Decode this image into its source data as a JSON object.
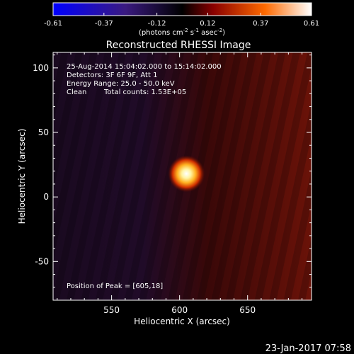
{
  "colorbar": {
    "ticks": [
      "-0.61",
      "-0.37",
      "-0.12",
      "0.12",
      "0.37",
      "0.61"
    ],
    "tick_values": [
      -0.61,
      -0.37,
      -0.12,
      0.12,
      0.37,
      0.61
    ],
    "range": [
      -0.61,
      0.61
    ],
    "units_base": "(photons cm",
    "units_exp1": "-2",
    "units_mid": " s",
    "units_exp2": "-1",
    "units_mid2": " asec",
    "units_exp3": "-2",
    "units_end": ")",
    "colors": [
      "#0000ff",
      "#3a1a80",
      "#000000",
      "#8a0000",
      "#ff6a00",
      "#ffffff"
    ]
  },
  "footer_timestamp": "23-Jan-2017 07:58",
  "chart_data": {
    "type": "heatmap",
    "title": "Reconstructed RHESSI Image",
    "xlabel": "Heliocentric X (arcsec)",
    "ylabel": "Heliocentric Y (arcsec)",
    "xlim": [
      507,
      697
    ],
    "ylim": [
      -80,
      112
    ],
    "x_ticks": [
      550,
      600,
      650
    ],
    "y_ticks": [
      -50,
      0,
      50,
      100
    ],
    "x_tick_labels": [
      "550",
      "600",
      "650"
    ],
    "y_tick_labels": [
      "-50",
      "0",
      "50",
      "100"
    ],
    "annotations": {
      "time_range": "25-Aug-2014 15:04:02.000 to 15:14:02.000",
      "detectors": "Detectors: 3F 6F 9F, Att 1",
      "energy": "Energy Range: 25.0 - 50.0 keV",
      "method": "Clean",
      "counts": "Total counts: 1.53E+05",
      "peak": "Position of Peak = [605,18]"
    },
    "peak": {
      "x": 605,
      "y": 18,
      "value": 0.61
    }
  }
}
